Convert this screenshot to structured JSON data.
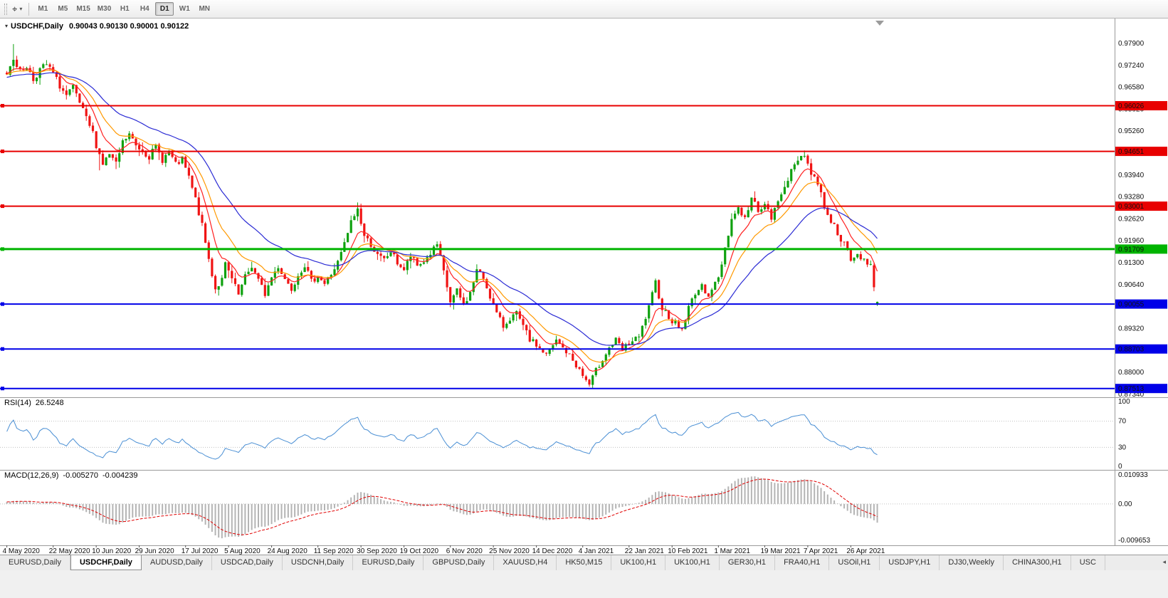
{
  "toolbar": {
    "timeframes": [
      "M1",
      "M5",
      "M15",
      "M30",
      "H1",
      "H4",
      "D1",
      "W1",
      "MN"
    ],
    "selected": "D1"
  },
  "chart": {
    "symbol_title": "USDCHF,Daily",
    "ohlc_text": "0.90043 0.90130 0.90001 0.90122",
    "colors": {
      "up": "#0fa10f",
      "down": "#f01414",
      "ma_fast": "#ff2020",
      "ma_mid": "#ff9900",
      "ma_slow": "#2b2bd4",
      "rsi": "#4a8fd4",
      "macd_hist": "#b4b4b4",
      "macd_signal": "#e00000"
    },
    "price_axis": [
      "0.97900",
      "0.97240",
      "0.96580",
      "0.95920",
      "0.95260",
      "0.94600",
      "0.93940",
      "0.93280",
      "0.92620",
      "0.91960",
      "0.91300",
      "0.90640",
      "0.89980",
      "0.89320",
      "0.88660",
      "0.88000",
      "0.87340"
    ],
    "price_range": {
      "min": 0.8725,
      "max": 0.9865
    },
    "levels": [
      {
        "value": 0.96026,
        "label": "0.96026",
        "color": "#e80000",
        "width": 2
      },
      {
        "value": 0.94651,
        "label": "0.94651",
        "color": "#e80000",
        "width": 2
      },
      {
        "value": 0.93001,
        "label": "0.93001",
        "color": "#e80000",
        "width": 2
      },
      {
        "value": 0.91709,
        "label": "0.91709",
        "color": "#00b400",
        "width": 3
      },
      {
        "value": 0.90055,
        "label": "0.90055",
        "color": "#0000e8",
        "width": 2
      },
      {
        "value": 0.88703,
        "label": "0.88703",
        "color": "#0000e8",
        "width": 2
      },
      {
        "value": 0.87513,
        "label": "0.87513",
        "color": "#0000e8",
        "width": 2
      }
    ],
    "date_ticks": [
      {
        "bar": 0,
        "label": "4 May 2020"
      },
      {
        "bar": 14,
        "label": "22 May 2020"
      },
      {
        "bar": 27,
        "label": "10 Jun 2020"
      },
      {
        "bar": 40,
        "label": "29 Jun 2020"
      },
      {
        "bar": 54,
        "label": "17 Jul 2020"
      },
      {
        "bar": 67,
        "label": "5 Aug 2020"
      },
      {
        "bar": 80,
        "label": "24 Aug 2020"
      },
      {
        "bar": 94,
        "label": "11 Sep 2020"
      },
      {
        "bar": 107,
        "label": "30 Sep 2020"
      },
      {
        "bar": 120,
        "label": "19 Oct 2020"
      },
      {
        "bar": 134,
        "label": "6 Nov 2020"
      },
      {
        "bar": 147,
        "label": "25 Nov 2020"
      },
      {
        "bar": 160,
        "label": "14 Dec 2020"
      },
      {
        "bar": 174,
        "label": "4 Jan 2021"
      },
      {
        "bar": 188,
        "label": "22 Jan 2021"
      },
      {
        "bar": 201,
        "label": "10 Feb 2021"
      },
      {
        "bar": 215,
        "label": "1 Mar 2021"
      },
      {
        "bar": 229,
        "label": "19 Mar 2021"
      },
      {
        "bar": 242,
        "label": "7 Apr 2021"
      },
      {
        "bar": 255,
        "label": "26 Apr 2021"
      }
    ]
  },
  "rsi": {
    "name": "RSI(14)",
    "value": "26.5248",
    "period": 14,
    "axis": [
      "100",
      "70",
      "30",
      "0"
    ],
    "guide_levels": [
      70,
      30
    ]
  },
  "macd": {
    "name": "MACD(12,26,9)",
    "value_main": "-0.005270",
    "value_signal": "-0.004239",
    "fast": 12,
    "slow": 26,
    "signal": 9,
    "axis_max": "0.010933",
    "axis_zero": "0.00",
    "axis_min": "-0.009653"
  },
  "tabs": [
    "EURUSD,Daily",
    "USDCHF,Daily",
    "AUDUSD,Daily",
    "USDCAD,Daily",
    "USDCNH,Daily",
    "EURUSD,Daily",
    "GBPUSD,Daily",
    "XAUUSD,H4",
    "HK50,M15",
    "UK100,H1",
    "UK100,H1",
    "GER30,H1",
    "FRA40,H1",
    "USOil,H1",
    "USDJPY,H1",
    "DJ30,Weekly",
    "CHINA300,H1",
    "USC"
  ],
  "selected_tab": 1,
  "chart_data": {
    "type": "candlestick",
    "symbol": "USDCHF",
    "timeframe": "Daily",
    "visible_bars": 264,
    "current_bar_ohlc": {
      "open": 0.90043,
      "high": 0.9013,
      "low": 0.90001,
      "close": 0.90122
    },
    "horizontal_levels": [
      0.96026,
      0.94651,
      0.93001,
      0.91709,
      0.90055,
      0.88703,
      0.87513
    ],
    "indicators": {
      "rsi14_current": 26.5248,
      "macd_main": -0.00527,
      "macd_signal": -0.004239
    },
    "moving_averages": [
      {
        "period": 8,
        "color": "#ff2020"
      },
      {
        "period": 16,
        "color": "#ff9900"
      },
      {
        "period": 34,
        "color": "#2b2bd4"
      }
    ],
    "close_path_anchors": [
      [
        -50,
        0.9635
      ],
      [
        -25,
        0.969
      ],
      [
        0,
        0.97
      ],
      [
        2,
        0.9748
      ],
      [
        4,
        0.9705
      ],
      [
        6,
        0.9722
      ],
      [
        8,
        0.968
      ],
      [
        10,
        0.9712
      ],
      [
        12,
        0.9726
      ],
      [
        14,
        0.97
      ],
      [
        16,
        0.9662
      ],
      [
        18,
        0.9632
      ],
      [
        20,
        0.9656
      ],
      [
        22,
        0.961
      ],
      [
        24,
        0.9562
      ],
      [
        26,
        0.952
      ],
      [
        27,
        0.9485
      ],
      [
        29,
        0.9428
      ],
      [
        31,
        0.9456
      ],
      [
        33,
        0.9425
      ],
      [
        35,
        0.9492
      ],
      [
        37,
        0.9516
      ],
      [
        39,
        0.9482
      ],
      [
        41,
        0.9468
      ],
      [
        43,
        0.945
      ],
      [
        45,
        0.9478
      ],
      [
        47,
        0.944
      ],
      [
        49,
        0.9464
      ],
      [
        51,
        0.9424
      ],
      [
        53,
        0.944
      ],
      [
        55,
        0.9386
      ],
      [
        57,
        0.932
      ],
      [
        59,
        0.924
      ],
      [
        61,
        0.914
      ],
      [
        63,
        0.9052
      ],
      [
        65,
        0.9078
      ],
      [
        66,
        0.9124
      ],
      [
        68,
        0.908
      ],
      [
        70,
        0.9032
      ],
      [
        72,
        0.9086
      ],
      [
        74,
        0.912
      ],
      [
        76,
        0.9076
      ],
      [
        78,
        0.9036
      ],
      [
        80,
        0.9086
      ],
      [
        82,
        0.912
      ],
      [
        84,
        0.9082
      ],
      [
        86,
        0.9052
      ],
      [
        88,
        0.9096
      ],
      [
        90,
        0.9124
      ],
      [
        92,
        0.9072
      ],
      [
        94,
        0.9092
      ],
      [
        96,
        0.9066
      ],
      [
        98,
        0.9096
      ],
      [
        100,
        0.913
      ],
      [
        102,
        0.9186
      ],
      [
        104,
        0.9252
      ],
      [
        106,
        0.9292
      ],
      [
        108,
        0.921
      ],
      [
        110,
        0.9186
      ],
      [
        112,
        0.915
      ],
      [
        114,
        0.9138
      ],
      [
        116,
        0.9164
      ],
      [
        118,
        0.913
      ],
      [
        120,
        0.9108
      ],
      [
        122,
        0.915
      ],
      [
        124,
        0.912
      ],
      [
        126,
        0.9134
      ],
      [
        128,
        0.9158
      ],
      [
        130,
        0.9184
      ],
      [
        132,
        0.91
      ],
      [
        134,
        0.9012
      ],
      [
        136,
        0.9044
      ],
      [
        138,
        0.9004
      ],
      [
        140,
        0.9038
      ],
      [
        142,
        0.9108
      ],
      [
        144,
        0.9084
      ],
      [
        146,
        0.903
      ],
      [
        148,
        0.8976
      ],
      [
        150,
        0.8938
      ],
      [
        152,
        0.8964
      ],
      [
        154,
        0.8976
      ],
      [
        156,
        0.8936
      ],
      [
        158,
        0.8898
      ],
      [
        160,
        0.8882
      ],
      [
        163,
        0.8852
      ],
      [
        166,
        0.8894
      ],
      [
        169,
        0.8862
      ],
      [
        172,
        0.8822
      ],
      [
        174,
        0.879
      ],
      [
        176,
        0.8762
      ],
      [
        178,
        0.8804
      ],
      [
        180,
        0.8842
      ],
      [
        182,
        0.8874
      ],
      [
        184,
        0.8896
      ],
      [
        186,
        0.8866
      ],
      [
        188,
        0.8888
      ],
      [
        191,
        0.8904
      ],
      [
        194,
        0.8994
      ],
      [
        196,
        0.907
      ],
      [
        198,
        0.8994
      ],
      [
        201,
        0.8956
      ],
      [
        204,
        0.8928
      ],
      [
        206,
        0.8994
      ],
      [
        208,
        0.9042
      ],
      [
        210,
        0.9056
      ],
      [
        212,
        0.9036
      ],
      [
        215,
        0.9082
      ],
      [
        217,
        0.9176
      ],
      [
        219,
        0.9262
      ],
      [
        221,
        0.9296
      ],
      [
        223,
        0.9262
      ],
      [
        225,
        0.9322
      ],
      [
        227,
        0.9292
      ],
      [
        229,
        0.9302
      ],
      [
        231,
        0.9264
      ],
      [
        233,
        0.9312
      ],
      [
        235,
        0.9366
      ],
      [
        237,
        0.9402
      ],
      [
        239,
        0.9442
      ],
      [
        241,
        0.946
      ],
      [
        243,
        0.9396
      ],
      [
        245,
        0.9372
      ],
      [
        247,
        0.9302
      ],
      [
        249,
        0.9256
      ],
      [
        251,
        0.9222
      ],
      [
        253,
        0.9184
      ],
      [
        255,
        0.9136
      ],
      [
        257,
        0.9152
      ],
      [
        259,
        0.9142
      ],
      [
        261,
        0.9124
      ],
      [
        262,
        0.9064
      ],
      [
        263,
        0.9012
      ]
    ],
    "overrides": [
      {
        "i": 2,
        "h": 0.9788
      },
      {
        "i": 28,
        "l": 0.9408
      },
      {
        "i": 176,
        "l": 0.8757
      },
      {
        "i": 241,
        "h": 0.9468
      },
      {
        "i": 262,
        "o": 0.9122,
        "h": 0.9129,
        "l": 0.9044,
        "c": 0.9056
      },
      {
        "i": 263,
        "o": 0.90043,
        "h": 0.9013,
        "l": 0.90001,
        "c": 0.90122
      }
    ]
  }
}
